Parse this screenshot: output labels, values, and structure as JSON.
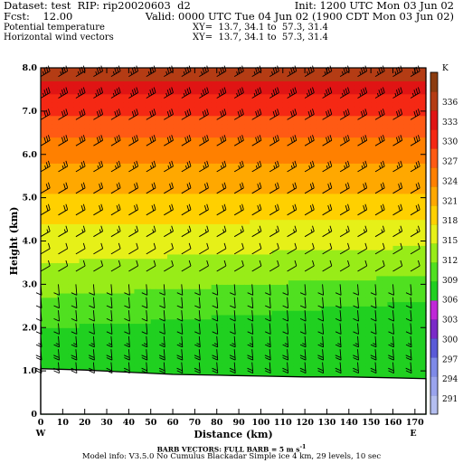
{
  "header": {
    "dataset": "Dataset: test  RIP: rip20020603  d2",
    "init": "Init: 1200 UTC Mon 03 Jun 02",
    "fcst": "Fcst:    12.00",
    "valid": "Valid: 0000 UTC Tue 04 Jun 02 (1900 CDT Mon 03 Jun 02)",
    "field1": "Potential temperature",
    "xy1": "XY=  13.7, 34.1 to  57.3, 31.4",
    "field2": "Horizontal wind vectors",
    "xy2": "XY=  13.7, 34.1 to  57.3, 31.4"
  },
  "footer": {
    "barb_note": "BARB VECTORS:  FULL BARB = 5 m s",
    "barb_sup": "-1",
    "model_info": "Model info: V3.5.0 No Cumulus Blackadar  Simple ice    4 km,   29 levels,    10 sec"
  },
  "colors": {
    "plot_frame": "#000000",
    "terrain": "#ffffff"
  },
  "chart_data": {
    "type": "heatmap",
    "title": "",
    "xlabel": "Distance (km)",
    "ylabel": "Height (km)",
    "xlim": [
      0,
      175
    ],
    "ylim": [
      0,
      8.0
    ],
    "x_ticks": [
      "0",
      "10",
      "20",
      "30",
      "40",
      "50",
      "60",
      "70",
      "80",
      "90",
      "100",
      "110",
      "120",
      "130",
      "140",
      "150",
      "160",
      "170"
    ],
    "y_ticks": [
      "0",
      "1.0",
      "2.0",
      "3.0",
      "4.0",
      "5.0",
      "6.0",
      "7.0",
      "8.0"
    ],
    "x_direction_labels": [
      "W",
      "E"
    ],
    "colorbar": {
      "unit": "K",
      "levels": [
        291,
        294,
        297,
        300,
        303,
        306,
        309,
        312,
        315,
        318,
        321,
        324,
        327,
        330,
        333,
        336
      ],
      "shown_labels": [
        "336",
        "333",
        "330",
        "327",
        "324",
        "321",
        "318",
        "315",
        "312",
        "309",
        "306",
        "303",
        "300",
        "297",
        "294",
        "291"
      ],
      "colors": [
        "#b4bef0",
        "#9aa4ee",
        "#7e8ae8",
        "#5a5ad8",
        "#7a2ac8",
        "#c028d8",
        "#20d020",
        "#50e020",
        "#98ec18",
        "#e6f018",
        "#ffd000",
        "#ffa800",
        "#ff8000",
        "#ff5a14",
        "#f52814",
        "#e01414",
        "#b43c14",
        "#8c3c10"
      ]
    },
    "theta_profile": {
      "heights_km": [
        1.0,
        1.5,
        2.0,
        2.5,
        3.0,
        3.5,
        4.0,
        4.5,
        5.0,
        5.5,
        6.0,
        6.5,
        7.0,
        7.5,
        8.0
      ],
      "theta_west_K": [
        307.5,
        308.0,
        309.0,
        311.0,
        313.2,
        315.0,
        316.5,
        318.5,
        320.5,
        322.5,
        325.0,
        327.5,
        330.5,
        334.0,
        338.5
      ],
      "theta_east_K": [
        306.0,
        306.5,
        307.0,
        308.5,
        311.0,
        313.5,
        315.5,
        318.0,
        320.5,
        322.5,
        325.0,
        327.5,
        330.5,
        334.0,
        338.5
      ]
    },
    "terrain_km": {
      "x": [
        0,
        20,
        40,
        60,
        80,
        100,
        120,
        140,
        160,
        175
      ],
      "height": [
        1.05,
        1.02,
        0.97,
        0.92,
        0.9,
        0.88,
        0.86,
        0.86,
        0.84,
        0.82
      ]
    },
    "wind_barbs": {
      "x_km": [
        0,
        8,
        16,
        24,
        32,
        40,
        48,
        56,
        64,
        72,
        80,
        88,
        96,
        104,
        112,
        120,
        128,
        136,
        144,
        152,
        160,
        168
      ],
      "levels_km": [
        1.2,
        1.5,
        1.8,
        2.1,
        2.4,
        2.7,
        3.0,
        3.3,
        3.7,
        4.1,
        4.6,
        5.1,
        5.6,
        6.2,
        6.8,
        7.3,
        7.8
      ],
      "speed_ms": [
        12,
        10,
        8,
        6,
        5,
        5,
        5,
        5,
        6,
        8,
        10,
        12,
        14,
        16,
        17,
        18,
        19
      ]
    }
  }
}
